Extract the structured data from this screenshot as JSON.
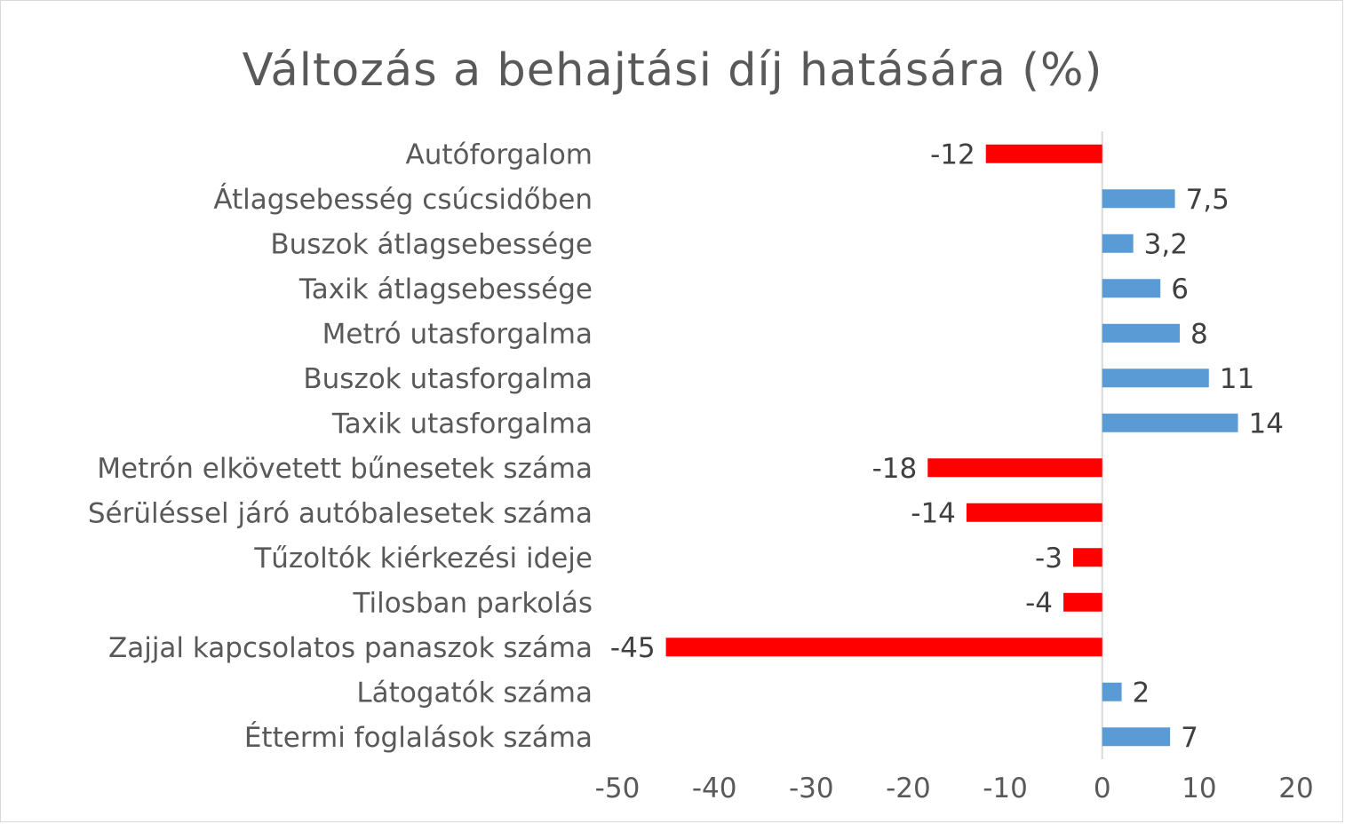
{
  "chart_data": {
    "type": "bar",
    "orientation": "horizontal",
    "title": "Változás a behajtási díj hatására (%)",
    "categories": [
      "Autóforgalom",
      "Átlagsebesség csúcsidőben",
      "Buszok átlagsebessége",
      "Taxik átlagsebessége",
      "Metró utasforgalma",
      "Buszok utasforgalma",
      "Taxik utasforgalma",
      "Metrón elkövetett bűnesetek száma",
      "Sérüléssel járó autóbalesetek száma",
      "Tűzoltók kiérkezési ideje",
      "Tilosban parkolás",
      "Zajjal kapcsolatos panaszok száma",
      "Látogatók száma",
      "Éttermi foglalások száma"
    ],
    "values": [
      -12,
      7.5,
      3.2,
      6,
      8,
      11,
      14,
      -18,
      -14,
      -3,
      -4,
      -45,
      2,
      7
    ],
    "data_labels": [
      "-12",
      "7,5",
      "3,2",
      "6",
      "8",
      "11",
      "14",
      "-18",
      "-14",
      "-3",
      "-4",
      "-45",
      "2",
      "7"
    ],
    "xlim": [
      -50,
      20
    ],
    "xticks": [
      -50,
      -40,
      -30,
      -20,
      -10,
      0,
      10,
      20
    ],
    "xtick_labels": [
      "-50",
      "-40",
      "-30",
      "-20",
      "-10",
      "0",
      "10",
      "20"
    ],
    "colors": {
      "positive": "#5b9bd5",
      "negative": "#ff0000",
      "axis": "#d9d9d9"
    },
    "grid": false,
    "legend": "none"
  }
}
